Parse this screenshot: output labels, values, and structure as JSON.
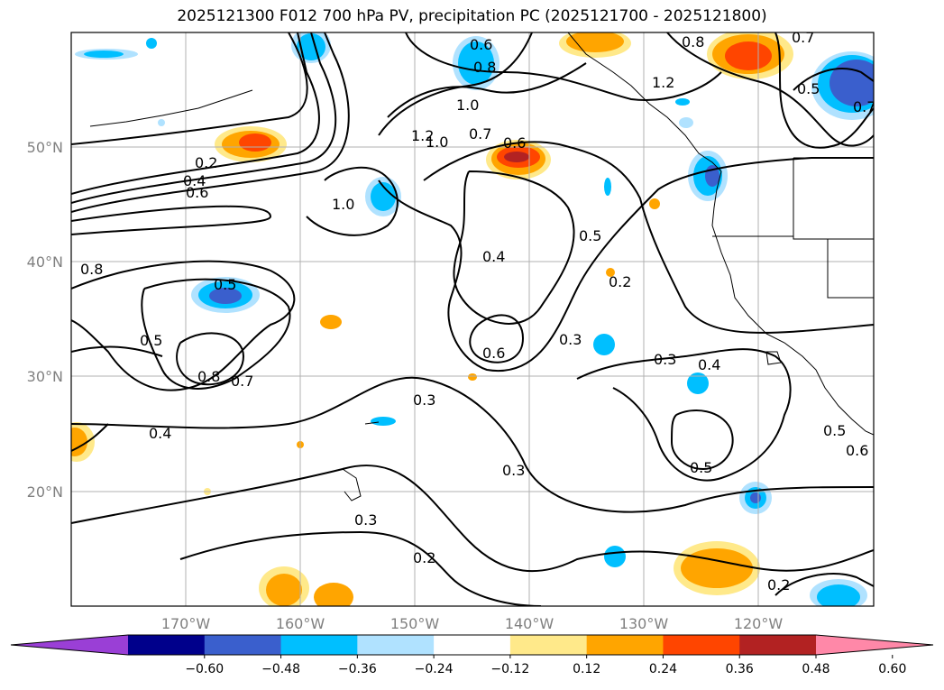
{
  "title": "2025121300 F012 700 hPa PV, precipitation PC (2025121700 - 2025121800)",
  "lat_labels": [
    "50°N",
    "40°N",
    "30°N",
    "20°N"
  ],
  "lon_labels": [
    "170°W",
    "160°W",
    "150°W",
    "140°W",
    "130°W",
    "120°W"
  ],
  "colorbar": {
    "ticks": [
      "−0.60",
      "−0.48",
      "−0.36",
      "−0.24",
      "−0.12",
      "0.12",
      "0.24",
      "0.36",
      "0.48",
      "0.60"
    ],
    "colors": [
      "#9a3fd6",
      "#00008b",
      "#3a5fcd",
      "#00bfff",
      "#b0e2ff",
      "#ffffff",
      "#ffe98a",
      "#ffa500",
      "#ff4500",
      "#b22222",
      "#ff88a8"
    ]
  },
  "contour_labels": [
    "0.2",
    "0.4",
    "0.6",
    "1.0",
    "1.2",
    "1.0",
    "0.7",
    "0.6",
    "0.6",
    "0.8",
    "1.0",
    "0.8",
    "0.7",
    "1.2",
    "0.5",
    "0.7",
    "0.8",
    "0.5",
    "0.8",
    "0.7",
    "0.4",
    "0.5",
    "0.6",
    "0.3",
    "0.3",
    "0.4",
    "0.2",
    "0.3",
    "0.4",
    "0.5",
    "0.5",
    "0.3",
    "0.2",
    "0.2",
    "0.3",
    "0.5",
    "0.6"
  ],
  "fill_levels": {
    "neg_light": "#b0e2ff",
    "neg_mid": "#00bfff",
    "neg_dark": "#3a5fcd",
    "neg_deep": "#00008b",
    "pos_light": "#ffe98a",
    "pos_mid": "#ffa500",
    "pos_dark": "#ff4500",
    "pos_deep": "#b22222"
  }
}
